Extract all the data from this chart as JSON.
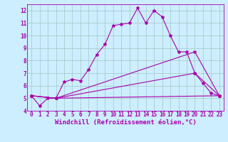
{
  "xlabel": "Windchill (Refroidissement éolien,°C)",
  "ylabel": "",
  "background_color": "#cceeff",
  "grid_color": "#aacccc",
  "line_color": "#aa00aa",
  "xlim": [
    -0.5,
    23.5
  ],
  "ylim": [
    4,
    12.5
  ],
  "xticks": [
    0,
    1,
    2,
    3,
    4,
    5,
    6,
    7,
    8,
    9,
    10,
    11,
    12,
    13,
    14,
    15,
    16,
    17,
    18,
    19,
    20,
    21,
    22,
    23
  ],
  "yticks": [
    4,
    5,
    6,
    7,
    8,
    9,
    10,
    11,
    12
  ],
  "line1_x": [
    0,
    1,
    2,
    3,
    4,
    5,
    6,
    7,
    8,
    9,
    10,
    11,
    12,
    13,
    14,
    15,
    16,
    17,
    18,
    19,
    20,
    21,
    22,
    23
  ],
  "line1_y": [
    5.2,
    4.4,
    5.0,
    5.0,
    6.3,
    6.5,
    6.4,
    7.3,
    8.5,
    9.3,
    10.8,
    10.9,
    11.0,
    12.2,
    11.0,
    12.0,
    11.5,
    10.0,
    8.7,
    8.7,
    7.0,
    6.2,
    5.4,
    5.2
  ],
  "line2_x": [
    0,
    3,
    23
  ],
  "line2_y": [
    5.2,
    5.0,
    5.2
  ],
  "line3_x": [
    0,
    3,
    20,
    23
  ],
  "line3_y": [
    5.2,
    5.0,
    7.0,
    5.2
  ],
  "line4_x": [
    0,
    3,
    20,
    23
  ],
  "line4_y": [
    5.2,
    5.0,
    8.7,
    5.2
  ],
  "tick_fontsize": 5.5,
  "xlabel_fontsize": 6.5
}
